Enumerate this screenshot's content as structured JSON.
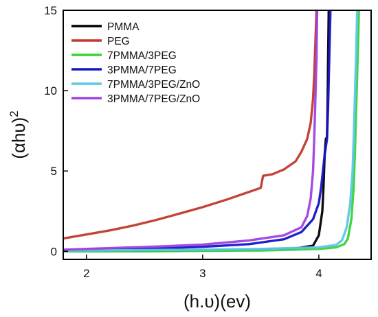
{
  "chart_data": {
    "type": "line",
    "xlabel": "(h.υ)(ev)",
    "ylabel": "(αhυ)",
    "ylabel_superscript": "2",
    "xlim": [
      1.8,
      4.45
    ],
    "ylim": [
      -0.5,
      15
    ],
    "x_ticks": [
      2,
      3,
      4
    ],
    "y_ticks": [
      0,
      5,
      10,
      15
    ],
    "grid": false,
    "legend_position": "top-left",
    "series": [
      {
        "name": "PMMA",
        "color": "#000000",
        "points": [
          [
            1.8,
            0.02
          ],
          [
            2.5,
            0.04
          ],
          [
            3.0,
            0.06
          ],
          [
            3.5,
            0.1
          ],
          [
            3.8,
            0.18
          ],
          [
            3.95,
            0.35
          ],
          [
            4.0,
            1.0
          ],
          [
            4.03,
            2.5
          ],
          [
            4.04,
            4.0
          ],
          [
            4.05,
            6.0
          ],
          [
            4.06,
            7.0
          ],
          [
            4.07,
            7.1
          ],
          [
            4.075,
            9.0
          ],
          [
            4.08,
            12.0
          ],
          [
            4.085,
            15.0
          ]
        ]
      },
      {
        "name": "PEG",
        "color": "#c0392b",
        "points": [
          [
            1.8,
            0.8
          ],
          [
            2.0,
            1.05
          ],
          [
            2.2,
            1.3
          ],
          [
            2.4,
            1.6
          ],
          [
            2.6,
            1.95
          ],
          [
            2.8,
            2.35
          ],
          [
            3.0,
            2.75
          ],
          [
            3.2,
            3.2
          ],
          [
            3.4,
            3.7
          ],
          [
            3.5,
            3.95
          ],
          [
            3.52,
            4.7
          ],
          [
            3.6,
            4.8
          ],
          [
            3.7,
            5.1
          ],
          [
            3.8,
            5.6
          ],
          [
            3.85,
            6.2
          ],
          [
            3.9,
            7.0
          ],
          [
            3.93,
            8.0
          ],
          [
            3.95,
            9.5
          ],
          [
            3.96,
            11.0
          ],
          [
            3.97,
            13.0
          ],
          [
            3.98,
            15.0
          ]
        ]
      },
      {
        "name": "7PMMA/3PEG",
        "color": "#3ad13a",
        "points": [
          [
            1.8,
            0.0
          ],
          [
            2.5,
            0.0
          ],
          [
            3.0,
            0.03
          ],
          [
            3.5,
            0.05
          ],
          [
            4.0,
            0.15
          ],
          [
            4.15,
            0.25
          ],
          [
            4.22,
            0.45
          ],
          [
            4.25,
            0.8
          ],
          [
            4.28,
            2.0
          ],
          [
            4.3,
            4.0
          ],
          [
            4.31,
            6.0
          ],
          [
            4.32,
            8.5
          ],
          [
            4.33,
            11.0
          ],
          [
            4.34,
            13.5
          ],
          [
            4.345,
            15.0
          ]
        ]
      },
      {
        "name": "3PMMA/7PEG",
        "color": "#1515c8",
        "points": [
          [
            1.8,
            0.08
          ],
          [
            2.2,
            0.12
          ],
          [
            2.6,
            0.18
          ],
          [
            3.0,
            0.28
          ],
          [
            3.4,
            0.45
          ],
          [
            3.7,
            0.75
          ],
          [
            3.85,
            1.2
          ],
          [
            3.95,
            2.0
          ],
          [
            4.0,
            3.0
          ],
          [
            4.02,
            4.0
          ],
          [
            4.05,
            6.0
          ],
          [
            4.07,
            7.0
          ],
          [
            4.08,
            9.0
          ],
          [
            4.09,
            12.0
          ],
          [
            4.1,
            15.0
          ]
        ]
      },
      {
        "name": "7PMMA/3PEG/ZnO",
        "color": "#5bc8e8",
        "points": [
          [
            1.8,
            0.05
          ],
          [
            2.5,
            0.08
          ],
          [
            3.0,
            0.1
          ],
          [
            3.5,
            0.15
          ],
          [
            4.0,
            0.25
          ],
          [
            4.15,
            0.4
          ],
          [
            4.2,
            0.7
          ],
          [
            4.24,
            1.5
          ],
          [
            4.27,
            3.0
          ],
          [
            4.29,
            5.0
          ],
          [
            4.3,
            7.0
          ],
          [
            4.31,
            9.5
          ],
          [
            4.32,
            12.0
          ],
          [
            4.33,
            15.0
          ]
        ]
      },
      {
        "name": "3PMMA/7PEG/ZnO",
        "color": "#a040e0",
        "points": [
          [
            1.8,
            0.1
          ],
          [
            2.2,
            0.2
          ],
          [
            2.6,
            0.3
          ],
          [
            3.0,
            0.42
          ],
          [
            3.4,
            0.68
          ],
          [
            3.7,
            1.0
          ],
          [
            3.85,
            1.5
          ],
          [
            3.9,
            2.2
          ],
          [
            3.93,
            3.3
          ],
          [
            3.95,
            5.0
          ],
          [
            3.96,
            7.0
          ],
          [
            3.97,
            9.5
          ],
          [
            3.98,
            12.0
          ],
          [
            3.985,
            15.0
          ]
        ]
      }
    ]
  }
}
